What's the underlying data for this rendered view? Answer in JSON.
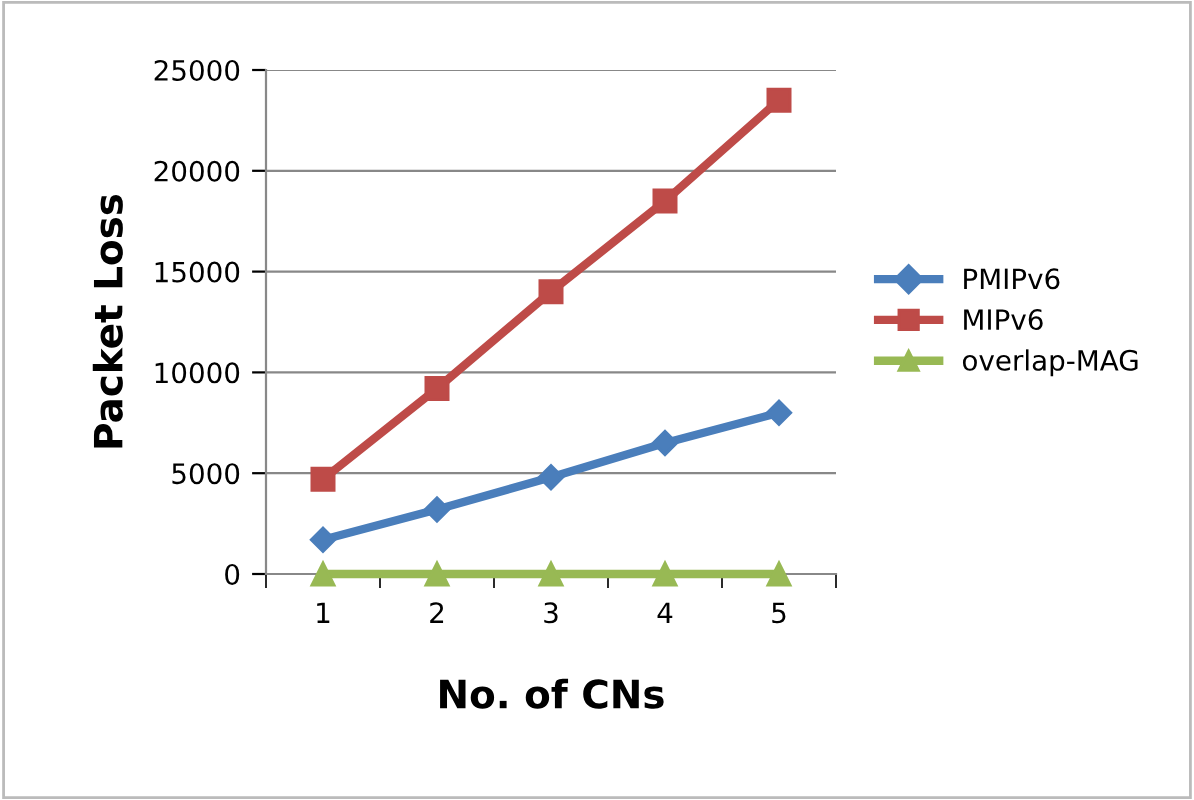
{
  "chart_data": {
    "type": "line",
    "xlabel": "No. of CNs",
    "ylabel": "Packet Loss",
    "categories": [
      "1",
      "2",
      "3",
      "4",
      "5"
    ],
    "series": [
      {
        "name": "PMIPv6",
        "color": "#4a7ebb",
        "marker": "diamond",
        "values": [
          1700,
          3200,
          4800,
          6500,
          8000
        ]
      },
      {
        "name": "MIPv6",
        "color": "#be4b48",
        "marker": "square",
        "values": [
          4700,
          9200,
          14000,
          18500,
          23500
        ]
      },
      {
        "name": "overlap-MAG",
        "color": "#98b954",
        "marker": "triangle",
        "values": [
          0,
          0,
          0,
          0,
          0
        ]
      }
    ],
    "ylim": [
      0,
      25000
    ],
    "yticks": [
      0,
      5000,
      10000,
      15000,
      20000,
      25000
    ],
    "grid": "y",
    "legend": "right",
    "line_style": "solid"
  }
}
